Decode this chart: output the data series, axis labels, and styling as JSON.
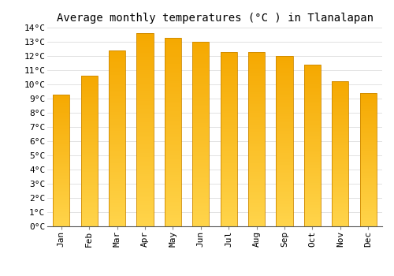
{
  "title": "Average monthly temperatures (°C ) in Tlanalapan",
  "months": [
    "Jan",
    "Feb",
    "Mar",
    "Apr",
    "May",
    "Jun",
    "Jul",
    "Aug",
    "Sep",
    "Oct",
    "Nov",
    "Dec"
  ],
  "values": [
    9.3,
    10.6,
    12.4,
    13.6,
    13.3,
    13.0,
    12.3,
    12.3,
    12.0,
    11.4,
    10.2,
    9.4
  ],
  "bar_color_top": "#F5A800",
  "bar_color_bottom": "#FFD44A",
  "bar_edge_color": "#CC8800",
  "background_color": "#FFFFFF",
  "grid_color": "#DDDDDD",
  "ylim": [
    0,
    14
  ],
  "yticks": [
    0,
    1,
    2,
    3,
    4,
    5,
    6,
    7,
    8,
    9,
    10,
    11,
    12,
    13,
    14
  ],
  "ytick_labels": [
    "0°C",
    "1°C",
    "2°C",
    "3°C",
    "4°C",
    "5°C",
    "6°C",
    "7°C",
    "8°C",
    "9°C",
    "10°C",
    "11°C",
    "12°C",
    "13°C",
    "14°C"
  ],
  "title_fontsize": 10,
  "tick_fontsize": 8,
  "font_family": "monospace",
  "bar_width": 0.6
}
